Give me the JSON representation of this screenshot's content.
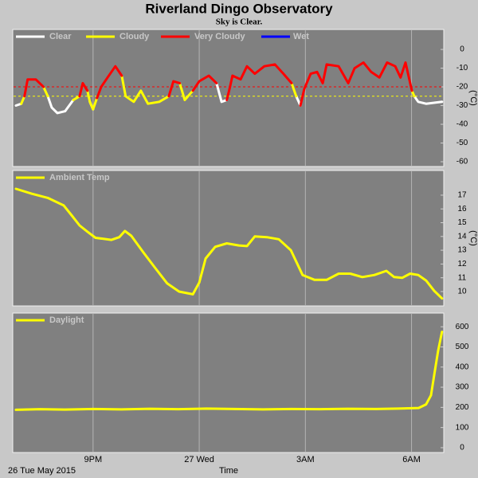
{
  "chart_data": [
    {
      "type": "line",
      "title": "Riverland Dingo Observatory",
      "subtitle": "Sky is Clear.",
      "ylabel": "(°C)",
      "ylim": [
        -61.7,
        9.4
      ],
      "yticks": [
        0,
        -10,
        -20,
        -30,
        -40,
        -50,
        -60
      ],
      "thresholds": [
        {
          "value": -20,
          "color": "#ff0000"
        },
        {
          "value": -25,
          "color": "#ffff00"
        }
      ],
      "x": [
        18.82,
        18.97,
        19.06,
        19.15,
        19.38,
        19.6,
        19.72,
        19.83,
        19.99,
        20.21,
        20.44,
        20.62,
        20.71,
        20.84,
        20.91,
        21,
        21.11,
        21.23,
        21.41,
        21.63,
        21.81,
        21.92,
        22.15,
        22.35,
        22.55,
        22.87,
        23.14,
        23.27,
        23.45,
        23.59,
        23.82,
        24,
        24.27,
        24.49,
        24.63,
        24.78,
        24.87,
        24.94,
        25.17,
        25.35,
        25.57,
        25.84,
        26.14,
        26.38,
        26.61,
        26.74,
        26.86,
        26.97,
        27.15,
        27.33,
        27.49,
        27.6,
        27.94,
        28.21,
        28.39,
        28.64,
        28.86,
        29.09,
        29.31,
        29.54,
        29.69,
        29.83,
        30.01,
        30.08,
        30.19,
        30.41,
        30.86
      ],
      "series": [
        {
          "name": "Clear",
          "color": "#ffffff",
          "values": [
            -30,
            -29,
            null,
            null,
            null,
            null,
            -25,
            -31,
            -34,
            -33,
            -27,
            null,
            null,
            null,
            -28,
            -32,
            null,
            null,
            null,
            null,
            null,
            null,
            null,
            null,
            null,
            null,
            null,
            null,
            null,
            null,
            null,
            null,
            null,
            -18,
            -28,
            -27,
            null,
            null,
            null,
            null,
            null,
            null,
            null,
            null,
            null,
            -25,
            -30,
            null,
            null,
            null,
            null,
            null,
            null,
            null,
            null,
            null,
            null,
            null,
            null,
            null,
            null,
            null,
            null,
            -25,
            -28,
            -29,
            -28
          ]
        },
        {
          "name": "Cloudy",
          "color": "#ffff00",
          "values": [
            null,
            -29,
            -25,
            null,
            null,
            -20,
            -25,
            null,
            null,
            null,
            -27,
            -25,
            null,
            -22,
            -28,
            -32,
            -26,
            null,
            null,
            null,
            -14,
            -25,
            -28,
            -22,
            -29,
            -28,
            -25,
            null,
            -18,
            -27,
            -22,
            null,
            null,
            null,
            null,
            null,
            null,
            null,
            null,
            null,
            null,
            null,
            null,
            null,
            -18,
            -25,
            null,
            null,
            null,
            null,
            null,
            null,
            null,
            null,
            null,
            null,
            null,
            null,
            null,
            null,
            null,
            null,
            -22,
            -25,
            null,
            null,
            null
          ]
        },
        {
          "name": "Very Cloudy",
          "color": "#ff0000",
          "values": [
            null,
            null,
            -25,
            -16,
            -16,
            -20,
            null,
            null,
            null,
            null,
            null,
            -25,
            -18,
            -22,
            null,
            null,
            -26,
            -20,
            -15,
            -9,
            -14,
            null,
            null,
            null,
            null,
            null,
            -25,
            -17,
            -18,
            null,
            -22,
            -17,
            -14,
            -18,
            null,
            -27,
            -20,
            -14,
            -16,
            -9,
            -13,
            -9,
            -8,
            -13,
            -18,
            null,
            -30,
            -21,
            -13,
            -12,
            -18,
            -8,
            -9,
            -18,
            -10,
            -7,
            -12,
            -15,
            -7,
            -9,
            -15,
            -7,
            -22,
            null,
            null,
            null,
            null
          ]
        },
        {
          "name": "Wet",
          "color": "#0000ff",
          "values": [
            null,
            null,
            null,
            null,
            null,
            null,
            null,
            null,
            null,
            null,
            null,
            null,
            null,
            null,
            null,
            null,
            null,
            null,
            null,
            null,
            null,
            null,
            null,
            null,
            null,
            null,
            null,
            null,
            null,
            null,
            null,
            null,
            null,
            null,
            null,
            null,
            null,
            null,
            null,
            null,
            null,
            null,
            null,
            null,
            null,
            null,
            null,
            null,
            null,
            null,
            null,
            null,
            null,
            null,
            null,
            null,
            null,
            null,
            null,
            null,
            null,
            null,
            null,
            null,
            null,
            null,
            null
          ]
        }
      ]
    },
    {
      "type": "line",
      "ylabel": "(°C)",
      "ylim": [
        9.13,
        18.56
      ],
      "yticks": [
        10,
        11,
        12,
        13,
        14,
        15,
        16,
        17
      ],
      "x": [
        18.82,
        19.27,
        19.72,
        20.17,
        20.39,
        20.62,
        20.84,
        21.07,
        21.52,
        21.74,
        21.9,
        22.08,
        22.42,
        22.76,
        23.09,
        23.43,
        23.82,
        24,
        24.18,
        24.45,
        24.78,
        25.12,
        25.35,
        25.57,
        25.91,
        26.25,
        26.59,
        26.92,
        27.26,
        27.6,
        27.94,
        28.27,
        28.61,
        28.95,
        29.29,
        29.51,
        29.74,
        29.96,
        30.19,
        30.41,
        30.64,
        30.86
      ],
      "series": [
        {
          "name": "Ambient Temp",
          "color": "#ffff00",
          "values": [
            17.46,
            17.1,
            16.8,
            16.25,
            15.55,
            14.8,
            14.35,
            13.9,
            13.75,
            13.95,
            14.4,
            14.05,
            12.85,
            11.7,
            10.6,
            10.0,
            9.8,
            10.65,
            12.4,
            13.25,
            13.5,
            13.35,
            13.3,
            14.0,
            13.95,
            13.8,
            13.0,
            11.2,
            10.85,
            10.85,
            11.3,
            11.3,
            11.05,
            11.2,
            11.5,
            11.05,
            11.0,
            11.3,
            11.2,
            10.8,
            10.05,
            9.5
          ]
        }
      ]
    },
    {
      "type": "line",
      "ylim": [
        -16,
        652
      ],
      "yticks": [
        0,
        100,
        200,
        300,
        400,
        500,
        600
      ],
      "xlim": [
        18.73,
        30.91
      ],
      "xlabel": "Time",
      "date": "26 Tue May 2015",
      "xticks": [
        {
          "value": 21,
          "label": "9PM"
        },
        {
          "value": 24,
          "label": "27 Wed"
        },
        {
          "value": 27,
          "label": "3AM"
        },
        {
          "value": 30,
          "label": "6AM"
        }
      ],
      "x": [
        18.82,
        19.5,
        20.2,
        21,
        21.8,
        22.6,
        23.4,
        24.2,
        25,
        25.8,
        26.6,
        27.4,
        28.2,
        29,
        29.6,
        30.2,
        30.41,
        30.55,
        30.64,
        30.75,
        30.86
      ],
      "series": [
        {
          "name": "Daylight",
          "color": "#ffff00",
          "values": [
            188,
            191,
            189,
            192,
            190,
            193,
            191,
            194,
            192,
            190,
            192,
            191,
            193,
            192,
            194,
            197,
            215,
            260,
            360,
            480,
            575
          ]
        }
      ]
    }
  ]
}
